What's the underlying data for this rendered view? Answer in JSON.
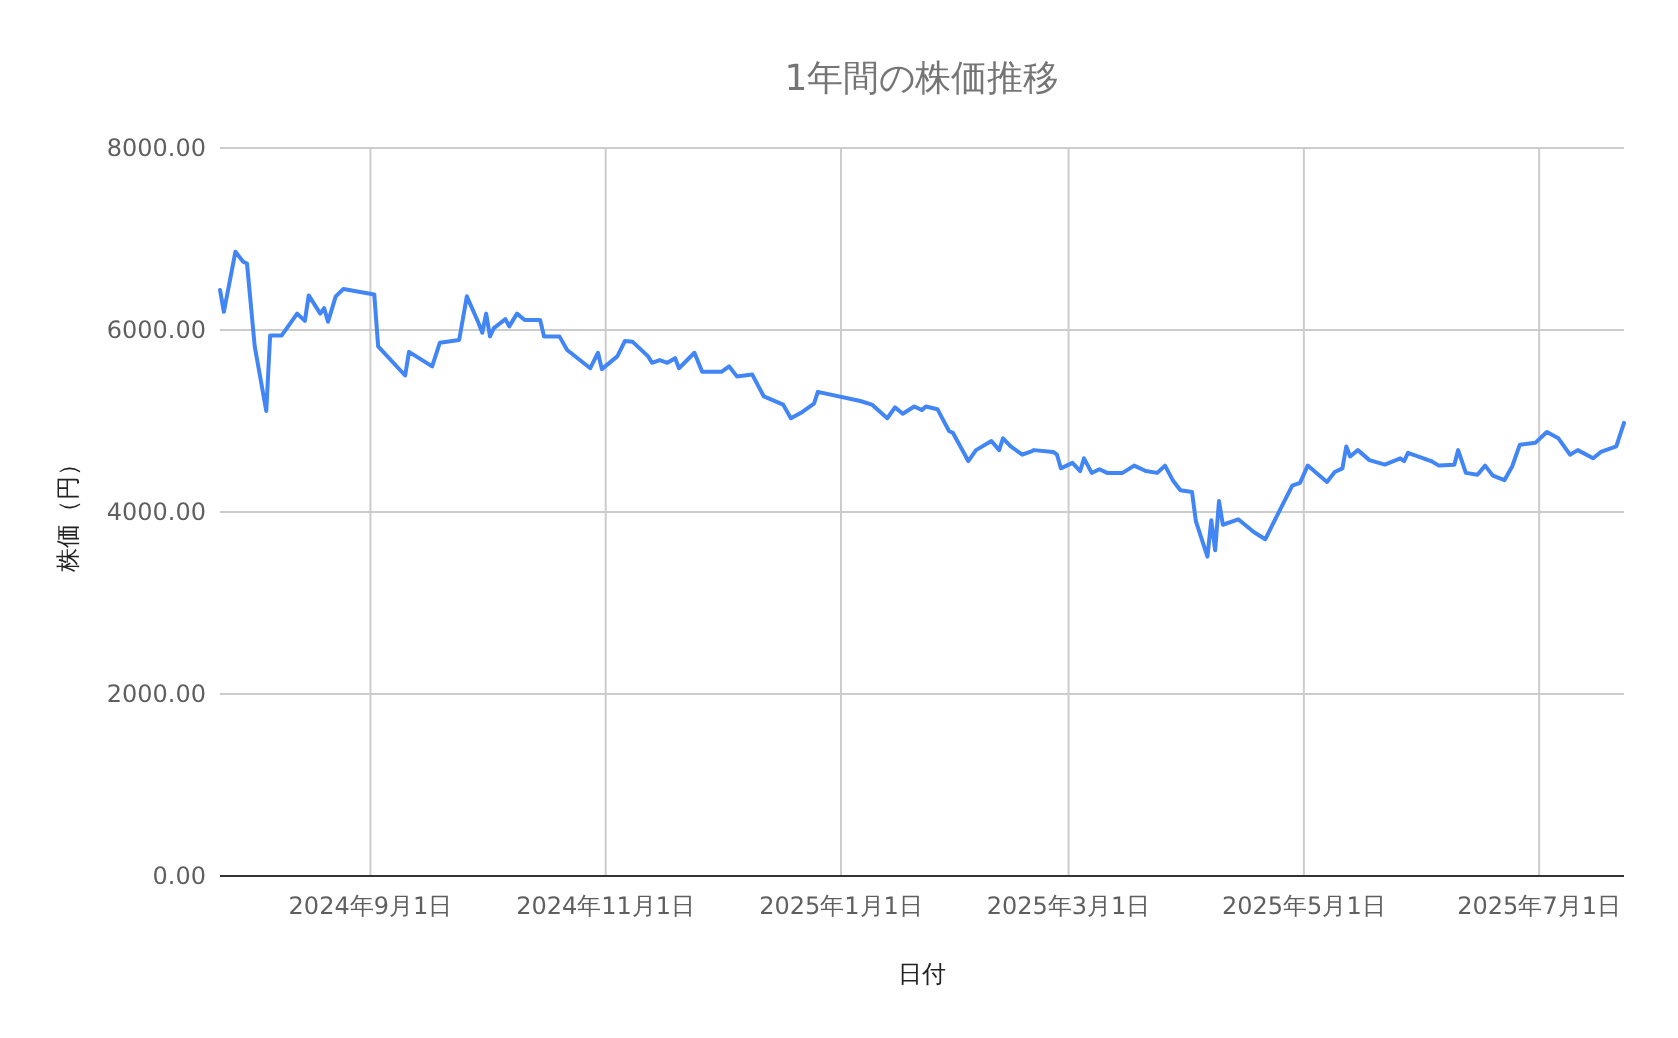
{
  "chart_data": {
    "type": "line",
    "title": "1年間の株価推移",
    "xlabel": "日付",
    "ylabel": "株価（円）",
    "xlim": [
      "2024-07-24",
      "2025-07-23"
    ],
    "xticks": [
      {
        "value": "2024-09-01",
        "label": "2024年9月1日"
      },
      {
        "value": "2024-11-01",
        "label": "2024年11月1日"
      },
      {
        "value": "2025-01-01",
        "label": "2025年1月1日"
      },
      {
        "value": "2025-03-01",
        "label": "2025年3月1日"
      },
      {
        "value": "2025-05-01",
        "label": "2025年5月1日"
      },
      {
        "value": "2025-07-01",
        "label": "2025年7月1日"
      }
    ],
    "ylim": [
      0,
      8000
    ],
    "yticks": [
      {
        "value": 0,
        "label": "0.00"
      },
      {
        "value": 2000,
        "label": "2000.00"
      },
      {
        "value": 4000,
        "label": "4000.00"
      },
      {
        "value": 6000,
        "label": "6000.00"
      },
      {
        "value": 8000,
        "label": "8000.00"
      }
    ],
    "grid": true,
    "marker": "none",
    "line_style": "solid",
    "series": [
      {
        "color": "#4285f4",
        "x": [
          "2024-07-24",
          "2024-07-25",
          "2024-07-28",
          "2024-07-30",
          "2024-07-31",
          "2024-08-02",
          "2024-08-05",
          "2024-08-06",
          "2024-08-09",
          "2024-08-13",
          "2024-08-15",
          "2024-08-16",
          "2024-08-19",
          "2024-08-20",
          "2024-08-21",
          "2024-08-23",
          "2024-08-25",
          "2024-09-02",
          "2024-09-03",
          "2024-09-10",
          "2024-09-11",
          "2024-09-17",
          "2024-09-19",
          "2024-09-24",
          "2024-09-26",
          "2024-09-29",
          "2024-09-30",
          "2024-10-01",
          "2024-10-02",
          "2024-10-03",
          "2024-10-06",
          "2024-10-07",
          "2024-10-09",
          "2024-10-11",
          "2024-10-15",
          "2024-10-16",
          "2024-10-20",
          "2024-10-22",
          "2024-10-28",
          "2024-10-30",
          "2024-10-31",
          "2024-11-04",
          "2024-11-06",
          "2024-11-08",
          "2024-11-12",
          "2024-11-13",
          "2024-11-15",
          "2024-11-17",
          "2024-11-19",
          "2024-11-20",
          "2024-11-24",
          "2024-11-26",
          "2024-12-01",
          "2024-12-03",
          "2024-12-05",
          "2024-12-09",
          "2024-12-12",
          "2024-12-17",
          "2024-12-19",
          "2024-12-22",
          "2024-12-25",
          "2024-12-26",
          "2025-01-06",
          "2025-01-09",
          "2025-01-13",
          "2025-01-15",
          "2025-01-17",
          "2025-01-20",
          "2025-01-22",
          "2025-01-23",
          "2025-01-26",
          "2025-01-29",
          "2025-01-30",
          "2025-02-03",
          "2025-02-05",
          "2025-02-09",
          "2025-02-11",
          "2025-02-12",
          "2025-02-14",
          "2025-02-17",
          "2025-02-19",
          "2025-02-20",
          "2025-02-25",
          "2025-02-26",
          "2025-02-27",
          "2025-03-02",
          "2025-03-04",
          "2025-03-05",
          "2025-03-07",
          "2025-03-09",
          "2025-03-11",
          "2025-03-15",
          "2025-03-18",
          "2025-03-21",
          "2025-03-24",
          "2025-03-26",
          "2025-03-28",
          "2025-03-30",
          "2025-04-02",
          "2025-04-03",
          "2025-04-06",
          "2025-04-07",
          "2025-04-08",
          "2025-04-09",
          "2025-04-10",
          "2025-04-14",
          "2025-04-18",
          "2025-04-21",
          "2025-04-25",
          "2025-04-28",
          "2025-04-30",
          "2025-05-02",
          "2025-05-07",
          "2025-05-09",
          "2025-05-11",
          "2025-05-12",
          "2025-05-13",
          "2025-05-15",
          "2025-05-18",
          "2025-05-22",
          "2025-05-26",
          "2025-05-27",
          "2025-05-28",
          "2025-06-03",
          "2025-06-05",
          "2025-06-09",
          "2025-06-10",
          "2025-06-12",
          "2025-06-15",
          "2025-06-17",
          "2025-06-19",
          "2025-06-22",
          "2025-06-24",
          "2025-06-26",
          "2025-06-30",
          "2025-07-03",
          "2025-07-06",
          "2025-07-09",
          "2025-07-11",
          "2025-07-15",
          "2025-07-17",
          "2025-07-21",
          "2025-07-23"
        ],
        "values": [
          6440,
          6200,
          6860,
          6750,
          6730,
          5820,
          5110,
          5940,
          5940,
          6180,
          6100,
          6380,
          6180,
          6240,
          6090,
          6370,
          6450,
          6390,
          5820,
          5500,
          5760,
          5600,
          5860,
          5890,
          6370,
          6080,
          5970,
          6180,
          5930,
          6020,
          6120,
          6040,
          6180,
          6110,
          6110,
          5930,
          5930,
          5780,
          5580,
          5750,
          5570,
          5710,
          5880,
          5870,
          5710,
          5640,
          5670,
          5640,
          5690,
          5580,
          5750,
          5540,
          5540,
          5600,
          5490,
          5510,
          5270,
          5180,
          5030,
          5100,
          5190,
          5320,
          5220,
          5180,
          5030,
          5150,
          5080,
          5160,
          5120,
          5160,
          5130,
          4890,
          4870,
          4560,
          4680,
          4780,
          4680,
          4810,
          4720,
          4630,
          4660,
          4680,
          4660,
          4630,
          4480,
          4540,
          4450,
          4590,
          4430,
          4470,
          4430,
          4430,
          4510,
          4450,
          4430,
          4510,
          4350,
          4240,
          4220,
          3900,
          3510,
          3910,
          3580,
          4120,
          3860,
          3920,
          3780,
          3700,
          4040,
          4290,
          4320,
          4510,
          4330,
          4440,
          4480,
          4720,
          4610,
          4680,
          4570,
          4520,
          4590,
          4560,
          4650,
          4560,
          4510,
          4520,
          4680,
          4430,
          4410,
          4510,
          4400,
          4350,
          4500,
          4740,
          4760,
          4880,
          4810,
          4630,
          4680,
          4590,
          4660,
          4720,
          4980
        ]
      }
    ]
  }
}
